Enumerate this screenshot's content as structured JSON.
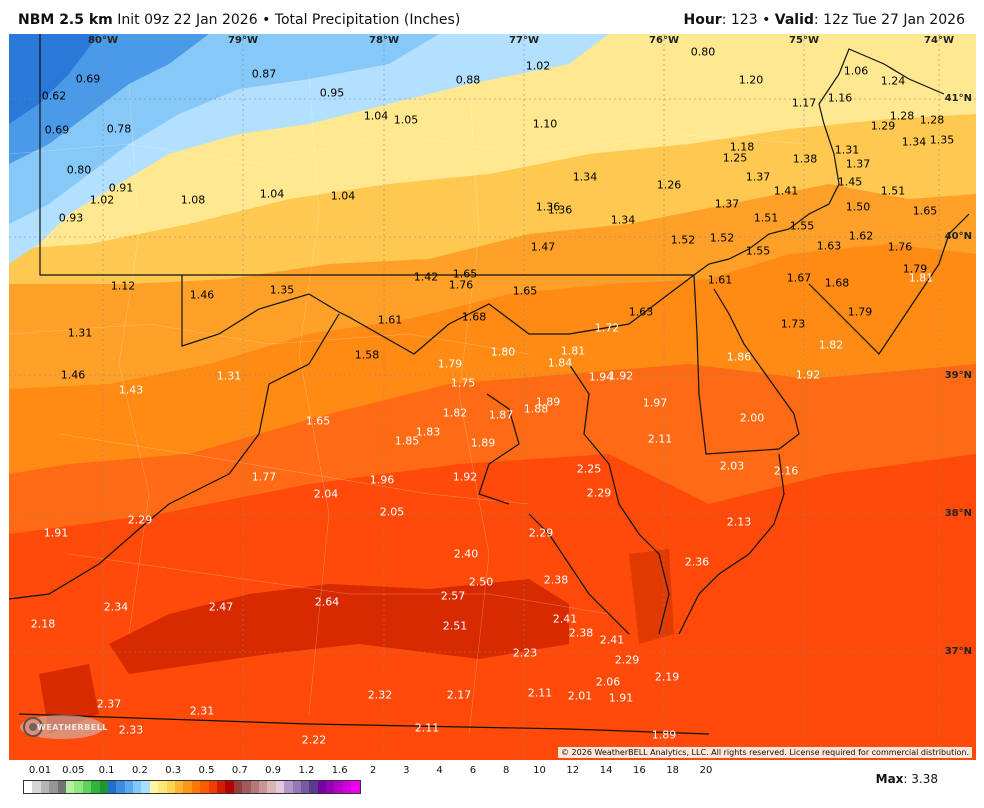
{
  "header": {
    "model": "NBM 2.5 km",
    "init": "Init 09z 22 Jan 2026",
    "product": "Total Precipitation (Inches)",
    "hour_label": "Hour",
    "hour_value": "123",
    "valid_label": "Valid",
    "valid_value": "12z Tue 27 Jan 2026"
  },
  "map": {
    "longitudes": [
      "80°W",
      "79°W",
      "78°W",
      "77°W",
      "76°W",
      "75°W",
      "74°W"
    ],
    "latitudes": [
      "41°N",
      "40°N",
      "39°N",
      "38°N",
      "37°N"
    ],
    "values": [
      "0.69",
      "0.62",
      "0.69",
      "0.78",
      "0.80",
      "0.91",
      "0.93",
      "0.87",
      "1.02",
      "1.08",
      "0.95",
      "1.04",
      "1.04",
      "1.05",
      "1.04",
      "0.88",
      "1.02",
      "1.10",
      "0.80",
      "1.20",
      "1.06",
      "1.24",
      "1.17",
      "1.16",
      "1.28",
      "1.28",
      "1.29",
      "1.34",
      "1.35",
      "1.18",
      "1.25",
      "1.38",
      "1.31",
      "1.37",
      "1.37",
      "1.45",
      "1.51",
      "1.34",
      "1.26",
      "1.36",
      "1.36",
      "1.34",
      "1.37",
      "1.41",
      "1.50",
      "1.65",
      "1.51",
      "1.55",
      "1.62",
      "1.76",
      "1.52",
      "1.52",
      "1.55",
      "1.63",
      "1.47",
      "1.12",
      "1.46",
      "1.35",
      "1.42",
      "1.65",
      "1.76",
      "1.65",
      "1.61",
      "1.67",
      "1.68",
      "1.79",
      "1.81",
      "1.31",
      "1.61",
      "1.68",
      "1.63",
      "1.73",
      "1.79",
      "1.58",
      "1.80",
      "1.72",
      "1.81",
      "1.82",
      "1.86",
      "1.46",
      "1.31",
      "1.43",
      "1.79",
      "1.75",
      "1.84",
      "1.94",
      "1.92",
      "1.92",
      "1.82",
      "1.87",
      "1.88",
      "1.89",
      "1.97",
      "2.00",
      "1.65",
      "1.85",
      "1.83",
      "1.89",
      "2.11",
      "1.77",
      "1.96",
      "1.92",
      "2.25",
      "2.03",
      "2.16",
      "2.04",
      "2.29",
      "1.91",
      "2.29",
      "2.05",
      "2.13",
      "2.29",
      "2.40",
      "2.36",
      "2.50",
      "2.38",
      "2.34",
      "2.47",
      "2.64",
      "2.57",
      "2.18",
      "2.51",
      "2.41",
      "2.38",
      "2.41",
      "2.23",
      "2.29",
      "2.19",
      "2.06",
      "2.37",
      "2.31",
      "2.32",
      "2.17",
      "2.11",
      "2.01",
      "1.91",
      "2.33",
      "2.22",
      "2.11",
      "1.89"
    ],
    "copyright": "© 2026 WeatherBELL Analytics, LLC. All rights reserved. License required for commercial distribution.",
    "logo_text": "WEATHERBELL"
  },
  "legend": {
    "labels": [
      "0.01",
      "0.05",
      "0.1",
      "0.2",
      "0.3",
      "0.5",
      "0.7",
      "0.9",
      "1.2",
      "1.6",
      "2",
      "3",
      "4",
      "6",
      "8",
      "10",
      "12",
      "14",
      "16",
      "18",
      "20"
    ],
    "colors": [
      "#ffffff",
      "#d6d6d6",
      "#b5b5b5",
      "#969696",
      "#737373",
      "#b4f0a0",
      "#8ee680",
      "#5ed25a",
      "#32b43c",
      "#1e9632",
      "#2070c8",
      "#3c8ce6",
      "#5aaaf0",
      "#82c8fa",
      "#aae0ff",
      "#fff5a0",
      "#ffe878",
      "#ffd250",
      "#ffb432",
      "#ff9614",
      "#ff7800",
      "#ff5a00",
      "#f03c00",
      "#d21e00",
      "#b40000",
      "#963c3c",
      "#a05a5a",
      "#b47878",
      "#c89696",
      "#dcb4b4",
      "#e6c8dc",
      "#b496c8",
      "#9678b4",
      "#785aa0",
      "#5a3c8c",
      "#7800a0",
      "#9600b4",
      "#b400c8",
      "#d200dc",
      "#f000f0"
    ],
    "max_label": "Max",
    "max_value": "3.38"
  }
}
